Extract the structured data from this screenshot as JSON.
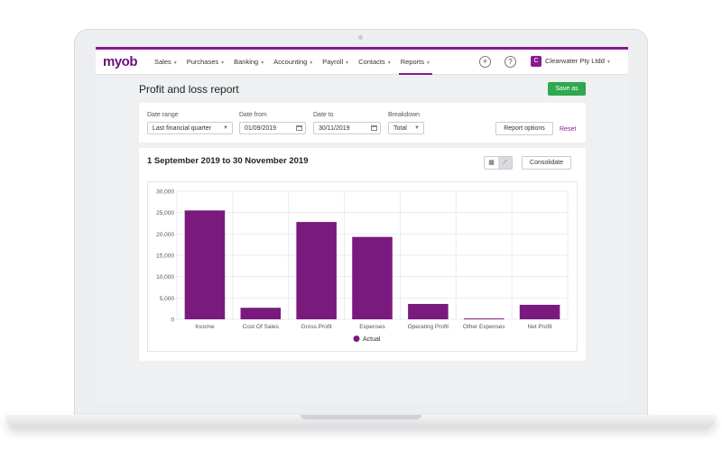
{
  "nav": {
    "logo": "myob",
    "items": [
      {
        "label": "Sales"
      },
      {
        "label": "Purchases"
      },
      {
        "label": "Banking"
      },
      {
        "label": "Accounting"
      },
      {
        "label": "Payroll"
      },
      {
        "label": "Contacts"
      },
      {
        "label": "Reports"
      }
    ],
    "active": "Reports",
    "company_initial": "C",
    "company_name": "Clearwater Pty Ltdd",
    "icons": [
      "plus-circle-icon",
      "help-icon",
      "chevron-down-icon"
    ]
  },
  "page": {
    "title": "Profit and loss report",
    "save_label": "Save as"
  },
  "filters": {
    "date_range_label": "Date range",
    "date_range_value": "Last financial quarter",
    "date_from_label": "Date from",
    "date_from_value": "01/09/2019",
    "date_to_label": "Date to",
    "date_to_value": "30/11/2019",
    "breakdown_label": "Breakdown",
    "breakdown_value": "Total",
    "report_options_label": "Report options",
    "reset_label": "Reset"
  },
  "report": {
    "title": "1 September 2019 to 30 November 2019",
    "consolidate_label": "Consolidate",
    "view_icons": [
      "table-icon",
      "chart-icon"
    ]
  },
  "colors": {
    "brand": "#8a1a8e",
    "bar": "#7a1a7e",
    "save_button": "#2fa84f"
  },
  "chart_data": {
    "type": "bar",
    "categories": [
      "Income",
      "Cost Of Sales",
      "Gross Profit",
      "Expenses",
      "Operating Profit",
      "Other Expenses",
      "Net Profit"
    ],
    "series": [
      {
        "name": "Actual",
        "values": [
          25500,
          2700,
          22800,
          19300,
          3600,
          200,
          3400
        ]
      }
    ],
    "yticks": [
      "0",
      "5,000",
      "10,000",
      "15,000",
      "20,000",
      "25,000",
      "30,000"
    ],
    "ylim": [
      0,
      30000
    ],
    "legend": "bottom",
    "grid": true
  }
}
